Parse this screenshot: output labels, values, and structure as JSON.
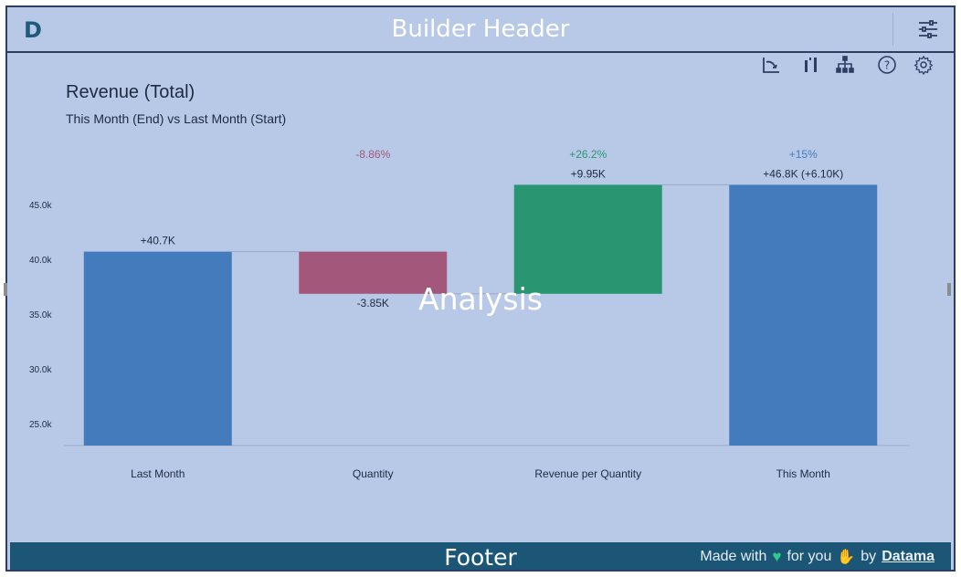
{
  "header": {
    "logo": "D",
    "title": "Builder Header"
  },
  "toolbar": {
    "icons": [
      "chart-axis-icon",
      "sort-bars-icon",
      "hierarchy-icon",
      "help-icon",
      "settings-gear-icon"
    ]
  },
  "chart_title": "Revenue (Total)",
  "chart_subtitle": "This Month (End) vs Last Month (Start)",
  "overlay_label": "Analysis",
  "chart_data": {
    "type": "bar",
    "categories": [
      "Last Month",
      "Quantity",
      "Revenue per Quantity",
      "This Month"
    ],
    "bars": [
      {
        "base": 0,
        "top": 40.7,
        "label": "+40.7K",
        "pct": ""
      },
      {
        "base": 40.7,
        "top": 36.85,
        "label": "-3.85K",
        "pct": "-8.86%"
      },
      {
        "base": 36.85,
        "top": 46.8,
        "label": "+9.95K",
        "pct": "+26.2%"
      },
      {
        "base": 0,
        "top": 46.8,
        "label": "+46.8K (+6.10K)",
        "pct": "+15%"
      }
    ],
    "ylim": [
      23.0,
      50.0
    ],
    "yticks": [
      25,
      30,
      35,
      40,
      45
    ],
    "ytick_labels": [
      "25.0k",
      "30.0k",
      "35.0k",
      "40.0k",
      "45.0k"
    ],
    "colors": {
      "total": "#447bbd",
      "negative": "#a3587b",
      "positive": "#2a9671"
    },
    "pct_colors": [
      "",
      "#a3587b",
      "#2a9671",
      "#447bbd"
    ],
    "grid": false
  },
  "footer": {
    "title": "Footer",
    "made_with": "Made with",
    "for_you": "for you",
    "by": "by",
    "link": "Datama"
  }
}
